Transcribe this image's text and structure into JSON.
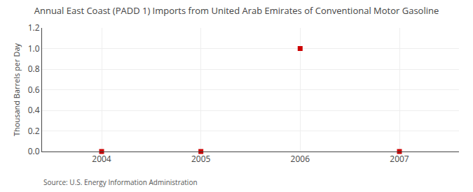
{
  "chart_data": {
    "type": "scatter",
    "title": "Annual East Coast (PADD 1) Imports from United Arab Emirates of Conventional Motor Gasoline",
    "ylabel": "Thousand Barrels per Day",
    "annotations": [
      "Source: U.S. Energy Information Administration"
    ],
    "x": [
      2004,
      2005,
      2006,
      2007
    ],
    "values": [
      0.0,
      0.0,
      1.0,
      0.0
    ],
    "color": "#cc0000",
    "marker": "square",
    "xlim": [
      2003.4,
      2007.6
    ],
    "ylim": [
      0.0,
      1.2
    ],
    "xticks": [
      2004,
      2005,
      2006,
      2007
    ],
    "yticks": [
      {
        "value": 0.0,
        "label": "0.0"
      },
      0.2,
      0.4,
      0.6,
      0.8,
      {
        "value": 1.0,
        "label": "1.0"
      },
      1.2
    ],
    "grid": true
  }
}
